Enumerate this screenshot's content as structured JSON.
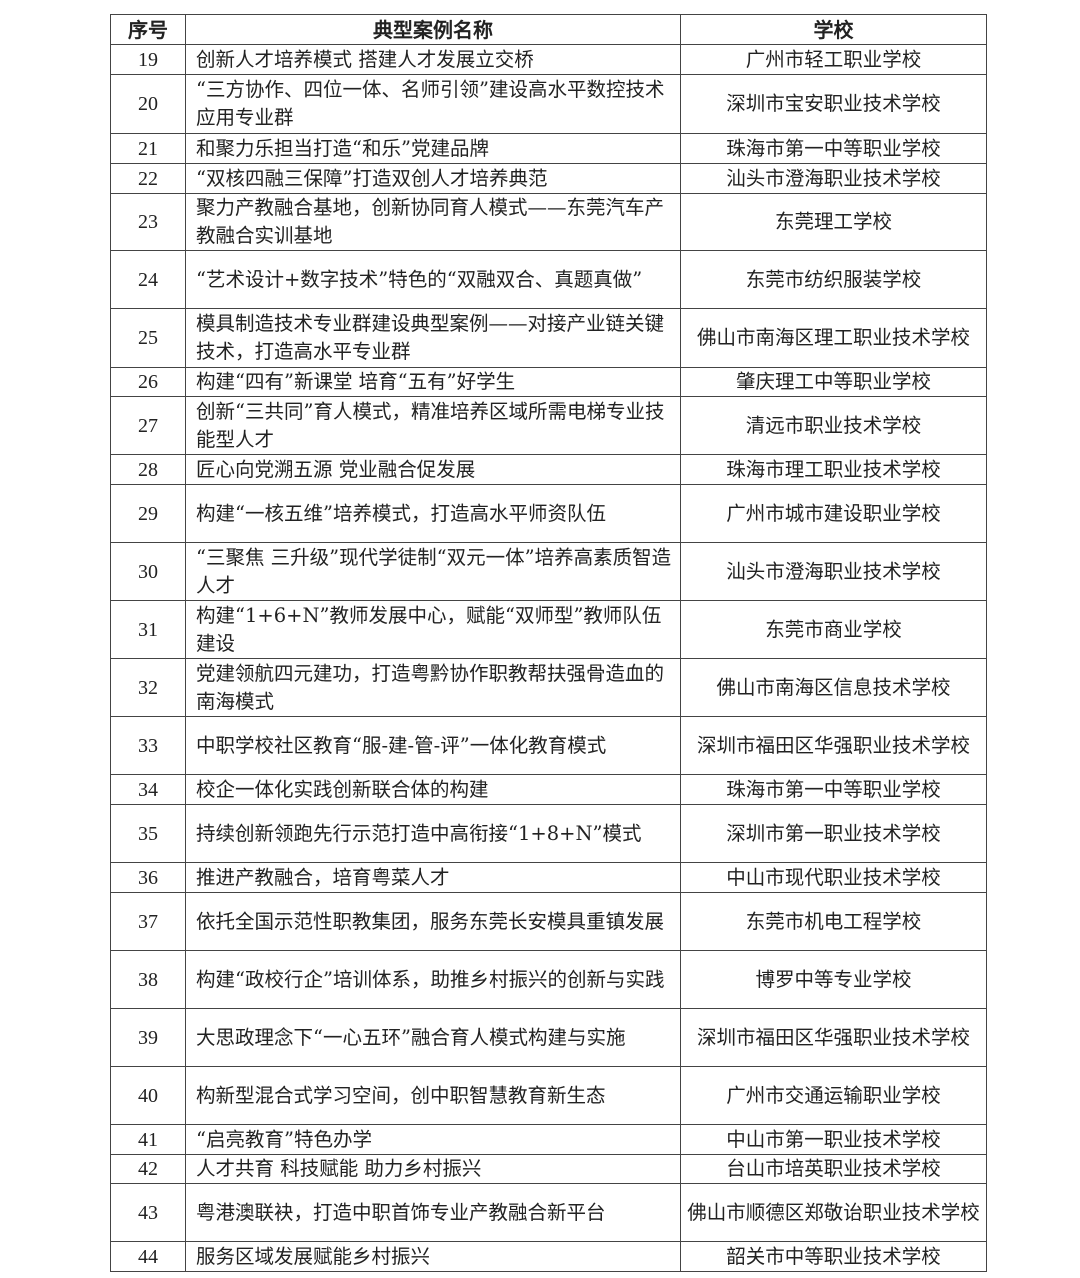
{
  "table": {
    "headers": [
      "序号",
      "典型案例名称",
      "学校"
    ],
    "rows": [
      {
        "no": "19",
        "name": "创新人才培养模式 搭建人才发展立交桥",
        "school": "广州市轻工职业学校"
      },
      {
        "no": "20",
        "name": "“三方协作、四位一体、名师引领”建设高水平数控技术应用专业群",
        "school": "深圳市宝安职业技术学校"
      },
      {
        "no": "21",
        "name": "和聚力乐担当打造“和乐”党建品牌",
        "school": "珠海市第一中等职业学校"
      },
      {
        "no": "22",
        "name": "“双核四融三保障”打造双创人才培养典范",
        "school": "汕头市澄海职业技术学校"
      },
      {
        "no": "23",
        "name": "聚力产教融合基地，创新协同育人模式——东莞汽车产教融合实训基地",
        "school": "东莞理工学校"
      },
      {
        "no": "24",
        "name": "“艺术设计+数字技术”特色的“双融双合、真题真做”",
        "school": "东莞市纺织服装学校"
      },
      {
        "no": "25",
        "name": "模具制造技术专业群建设典型案例——对接产业链关键技术，打造高水平专业群",
        "school": "佛山市南海区理工职业技术学校"
      },
      {
        "no": "26",
        "name": "构建“四有”新课堂 培育“五有”好学生",
        "school": "肇庆理工中等职业学校"
      },
      {
        "no": "27",
        "name": "创新“三共同”育人模式，精准培养区域所需电梯专业技能型人才",
        "school": "清远市职业技术学校"
      },
      {
        "no": "28",
        "name": "匠心向党溯五源 党业融合促发展",
        "school": "珠海市理工职业技术学校"
      },
      {
        "no": "29",
        "name": "构建“一核五维”培养模式，打造高水平师资队伍",
        "school": "广州市城市建设职业学校"
      },
      {
        "no": "30",
        "name": "“三聚焦 三升级”现代学徒制“双元一体”培养高素质智造人才",
        "school": "汕头市澄海职业技术学校"
      },
      {
        "no": "31",
        "name": "构建“1+6+N”教师发展中心，赋能“双师型”教师队伍建设",
        "school": "东莞市商业学校"
      },
      {
        "no": "32",
        "name": "党建领航四元建功，打造粤黔协作职教帮扶强骨造血的南海模式",
        "school": "佛山市南海区信息技术学校"
      },
      {
        "no": "33",
        "name": "中职学校社区教育“服-建-管-评”一体化教育模式",
        "school": "深圳市福田区华强职业技术学校"
      },
      {
        "no": "34",
        "name": "校企一体化实践创新联合体的构建",
        "school": "珠海市第一中等职业学校"
      },
      {
        "no": "35",
        "name": "持续创新领跑先行示范打造中高衔接“1+8+N”模式",
        "school": "深圳市第一职业技术学校"
      },
      {
        "no": "36",
        "name": "推进产教融合，培育粤菜人才",
        "school": "中山市现代职业技术学校"
      },
      {
        "no": "37",
        "name": "依托全国示范性职教集团，服务东莞长安模具重镇发展",
        "school": "东莞市机电工程学校"
      },
      {
        "no": "38",
        "name": "构建“政校行企”培训体系，助推乡村振兴的创新与实践",
        "school": "博罗中等专业学校"
      },
      {
        "no": "39",
        "name": "大思政理念下“一心五环”融合育人模式构建与实施",
        "school": "深圳市福田区华强职业技术学校"
      },
      {
        "no": "40",
        "name": "构新型混合式学习空间，创中职智慧教育新生态",
        "school": "广州市交通运输职业学校"
      },
      {
        "no": "41",
        "name": "“启亮教育”特色办学",
        "school": "中山市第一职业技术学校"
      },
      {
        "no": "42",
        "name": "人才共育 科技赋能 助力乡村振兴",
        "school": "台山市培英职业技术学校"
      },
      {
        "no": "43",
        "name": "粤港澳联袂，打造中职首饰专业产教融合新平台",
        "school": "佛山市顺德区郑敬诒职业技术学校"
      },
      {
        "no": "44",
        "name": "服务区域发展赋能乡村振兴",
        "school": "韶关市中等职业技术学校"
      }
    ]
  }
}
